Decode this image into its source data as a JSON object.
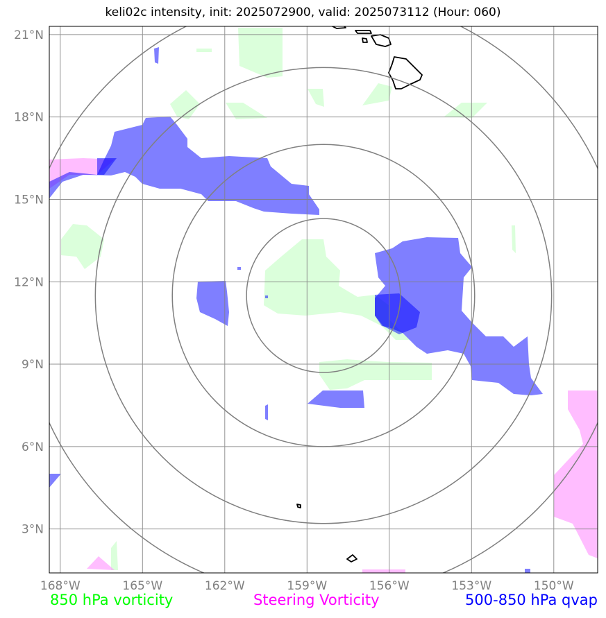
{
  "title": "keli02c intensity, init: 2025072900, valid: 2025073112 (Hour: 060)",
  "lat_ticks": [
    {
      "lat": 21,
      "label": "21°N"
    },
    {
      "lat": 18,
      "label": "18°N"
    },
    {
      "lat": 15,
      "label": "15°N"
    },
    {
      "lat": 12,
      "label": "12°N"
    },
    {
      "lat": 9,
      "label": "9°N"
    },
    {
      "lat": 6,
      "label": "6°N"
    },
    {
      "lat": 3,
      "label": "3°N"
    }
  ],
  "lon_ticks": [
    {
      "lon": -168,
      "label": "168°W"
    },
    {
      "lon": -165,
      "label": "165°W"
    },
    {
      "lon": -162,
      "label": "162°W"
    },
    {
      "lon": -159,
      "label": "159°W"
    },
    {
      "lon": -156,
      "label": "156°W"
    },
    {
      "lon": -153,
      "label": "153°W"
    },
    {
      "lon": -150,
      "label": "150°W"
    }
  ],
  "extent": {
    "lon_min": -168.4,
    "lon_max": -148.4,
    "lat_min": 1.4,
    "lat_max": 21.3
  },
  "storm_center": {
    "lon": -158.4,
    "lat": 11.5
  },
  "range_rings_deg": [
    2.8,
    5.5,
    8.3,
    11.0
  ],
  "legend": {
    "vort850": "850 hPa vorticity",
    "steering": "Steering Vorticity",
    "qvap": "500-850 hPa qvap"
  },
  "colors": {
    "vort850": "#ccffcc",
    "steering": "#ff99ff",
    "qvap": "#0000ff",
    "grid": "#808080",
    "coast": "#000000"
  }
}
